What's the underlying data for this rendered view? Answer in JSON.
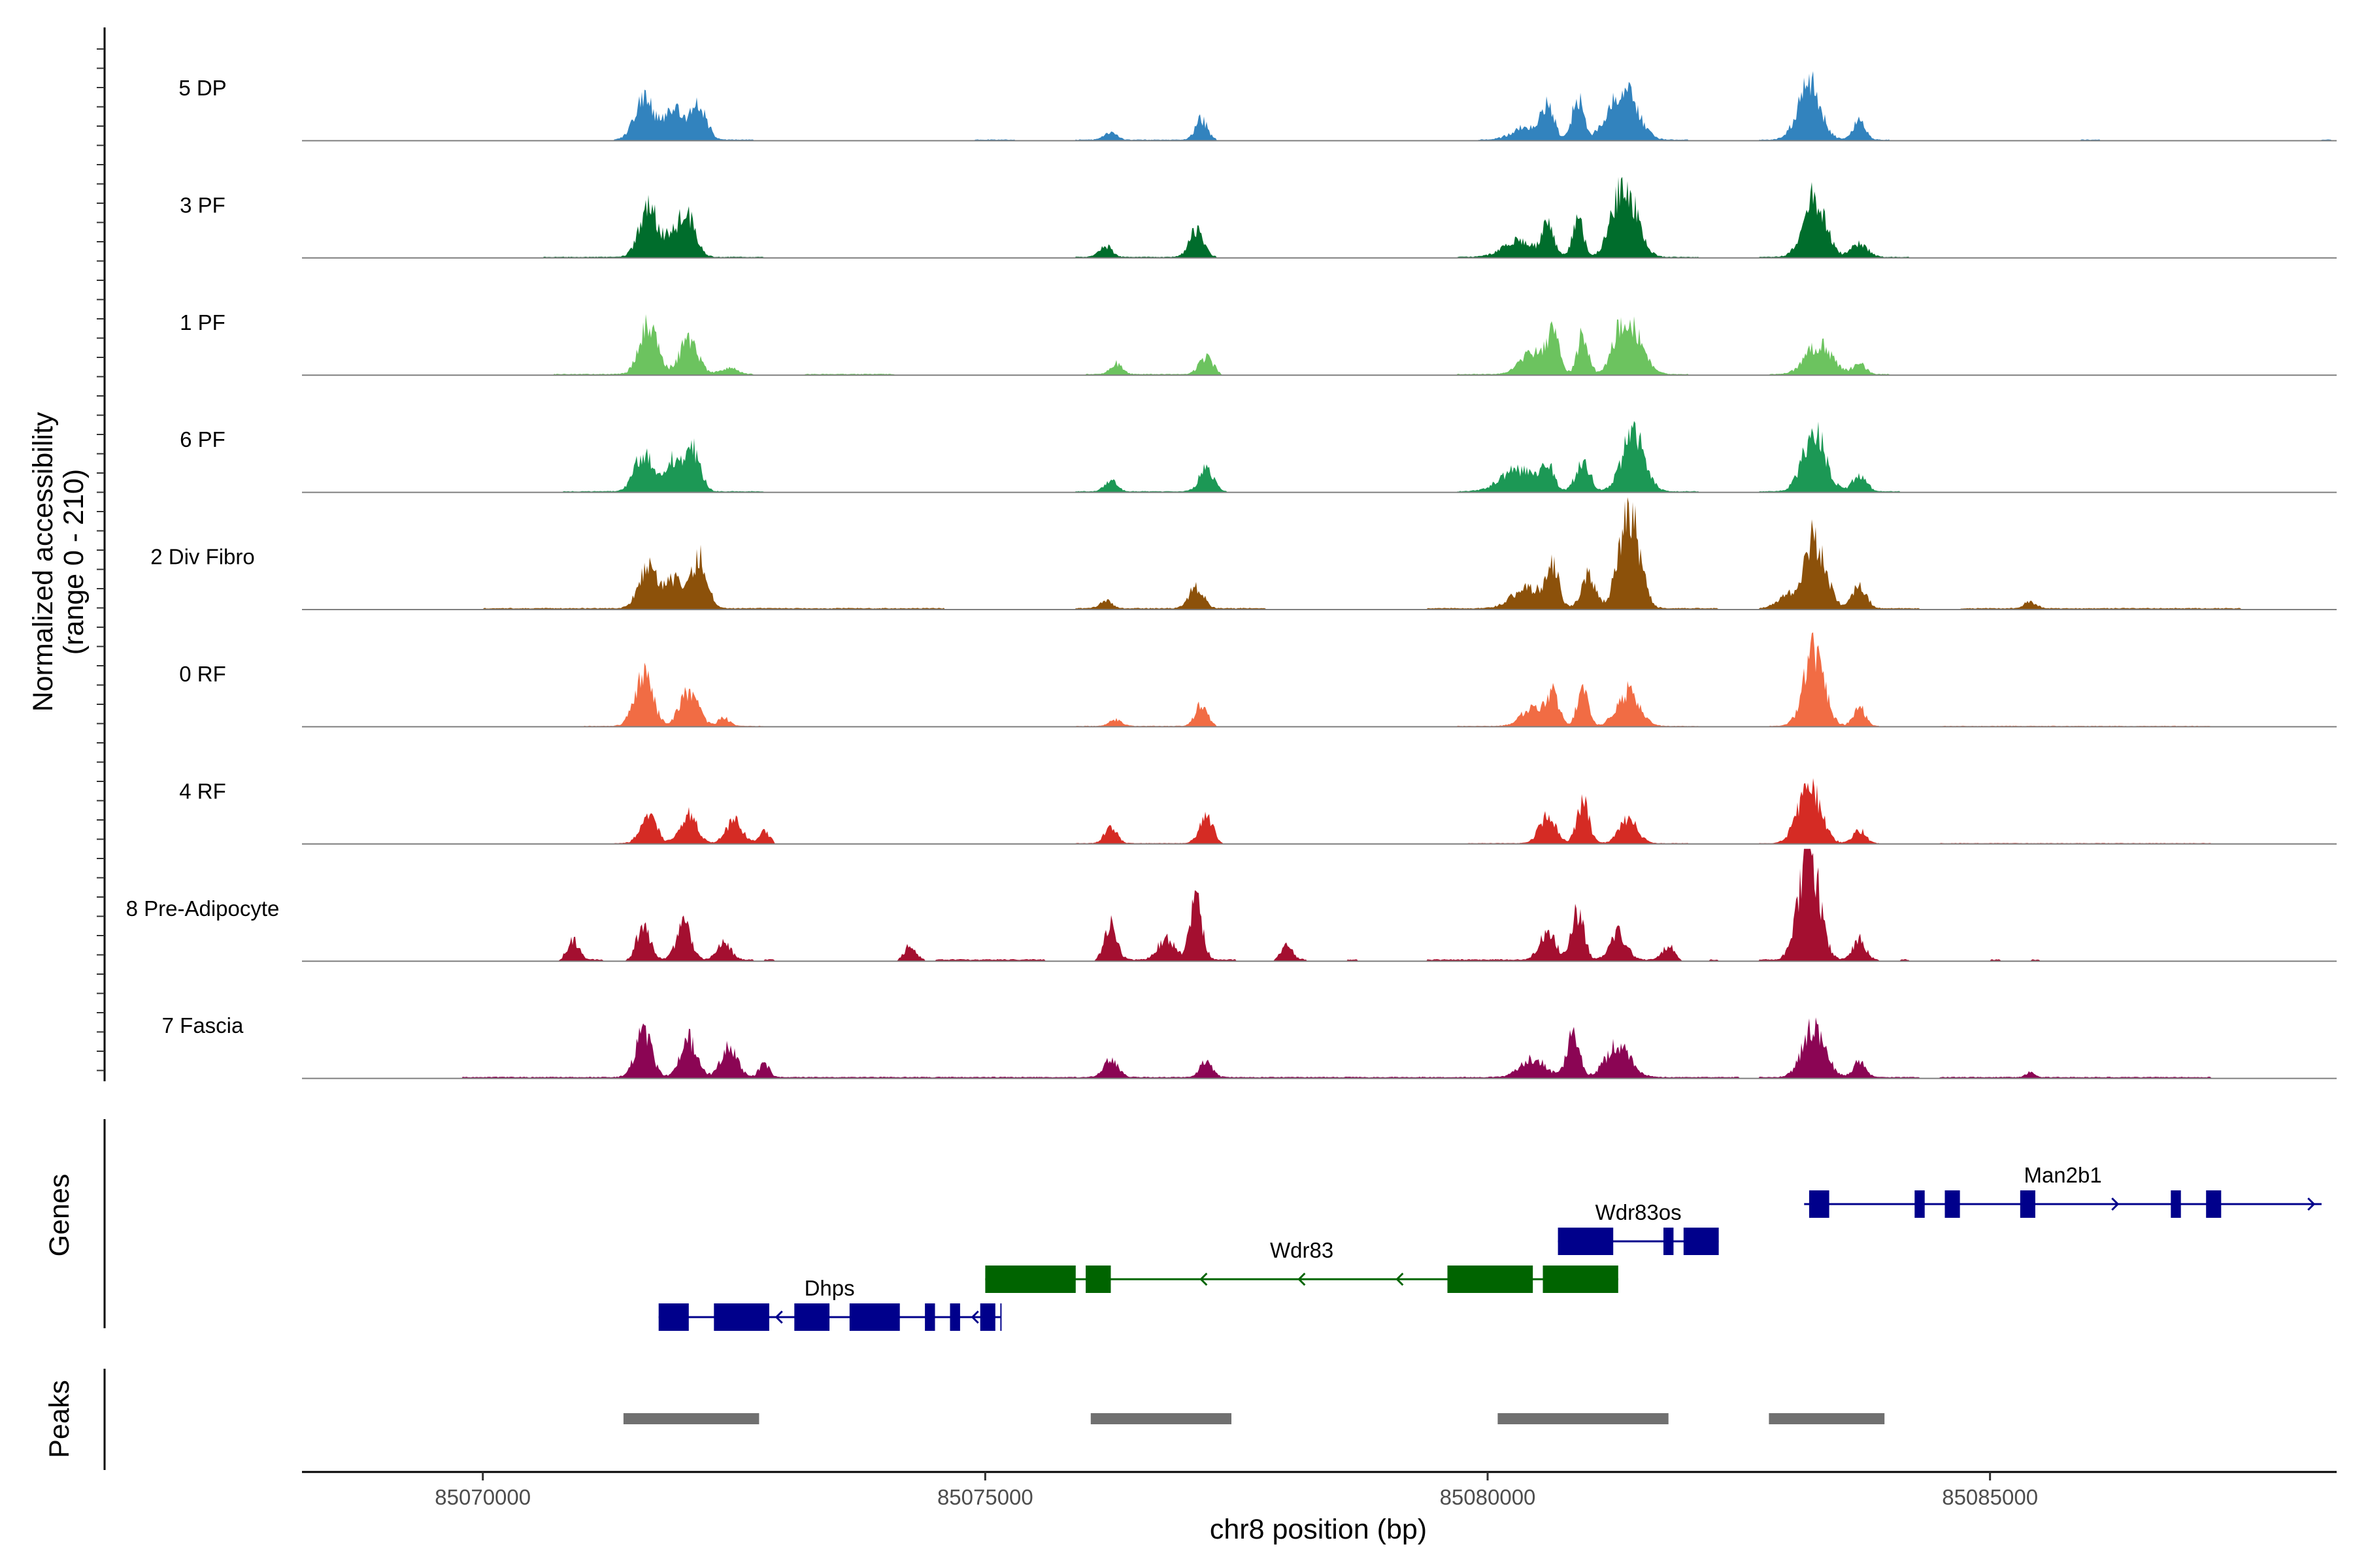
{
  "chart_data": {
    "type": "area",
    "chromosome": "chr8",
    "xlabel": "chr8 position (bp)",
    "xlim": [
      85068200,
      85088450
    ],
    "x_ticks": [
      85070000,
      85075000,
      85080000,
      85085000
    ],
    "x_tick_labels": [
      "85070000",
      "85075000",
      "85080000",
      "85085000"
    ],
    "ylabel_line1": "Normalized accessibility",
    "ylabel_line2": "(range 0 - 210)",
    "ylim": [
      0,
      210
    ],
    "panel_titles": {
      "genes": "Genes",
      "peaks": "Peaks"
    },
    "tracks": [
      {
        "name": "5 DP",
        "color": "#3283be",
        "noise": 2,
        "support": [
          [
            85071300,
            85072700
          ],
          [
            85074900,
            85075300
          ],
          [
            85075900,
            85077300
          ],
          [
            85079900,
            85082000
          ],
          [
            85082700,
            85084000
          ],
          [
            85085900,
            85086100
          ],
          [
            85088300,
            85088400
          ]
        ],
        "peaks": [
          [
            85071600,
            80,
            90
          ],
          [
            85071900,
            55,
            100
          ],
          [
            85072150,
            60,
            80
          ],
          [
            85076250,
            15,
            60
          ],
          [
            85077150,
            38,
            60
          ],
          [
            85080400,
            25,
            140
          ],
          [
            85080600,
            60,
            60
          ],
          [
            85080900,
            80,
            55
          ],
          [
            85081250,
            45,
            110
          ],
          [
            85081400,
            70,
            120
          ],
          [
            85083200,
            105,
            110
          ],
          [
            85083700,
            35,
            60
          ]
        ]
      },
      {
        "name": "3 PF",
        "color": "#006d2c",
        "noise": 2,
        "support": [
          [
            85070600,
            85072800
          ],
          [
            85075900,
            85077300
          ],
          [
            85079700,
            85082100
          ],
          [
            85082700,
            85084200
          ]
        ],
        "peaks": [
          [
            85071650,
            95,
            90
          ],
          [
            85071900,
            45,
            80
          ],
          [
            85072050,
            65,
            80
          ],
          [
            85076200,
            20,
            60
          ],
          [
            85077100,
            48,
            70
          ],
          [
            85080300,
            30,
            150
          ],
          [
            85080600,
            55,
            60
          ],
          [
            85080900,
            72,
            55
          ],
          [
            85081300,
            60,
            100
          ],
          [
            85081400,
            90,
            110
          ],
          [
            85083250,
            110,
            110
          ],
          [
            85083700,
            25,
            80
          ]
        ]
      },
      {
        "name": "1 PF",
        "color": "#6cc35f",
        "noise": 2,
        "support": [
          [
            85070700,
            85072700
          ],
          [
            85073200,
            85074100
          ],
          [
            85076000,
            85077300
          ],
          [
            85079700,
            85082000
          ],
          [
            85082800,
            85084000
          ]
        ],
        "peaks": [
          [
            85071650,
            90,
            90
          ],
          [
            85072050,
            65,
            90
          ],
          [
            85072450,
            12,
            80
          ],
          [
            85076300,
            20,
            60
          ],
          [
            85077200,
            30,
            70
          ],
          [
            85080450,
            40,
            120
          ],
          [
            85080650,
            70,
            60
          ],
          [
            85080950,
            75,
            55
          ],
          [
            85081300,
            55,
            80
          ],
          [
            85081450,
            80,
            110
          ],
          [
            85083300,
            55,
            130
          ],
          [
            85083700,
            20,
            60
          ]
        ]
      },
      {
        "name": "6 PF",
        "color": "#1c9855",
        "noise": 2,
        "support": [
          [
            85070800,
            85072800
          ],
          [
            85075900,
            85077400
          ],
          [
            85079700,
            85082100
          ],
          [
            85082700,
            85084100
          ]
        ],
        "peaks": [
          [
            85071600,
            70,
            90
          ],
          [
            85071900,
            60,
            80
          ],
          [
            85072100,
            75,
            70
          ],
          [
            85076250,
            20,
            60
          ],
          [
            85077200,
            42,
            70
          ],
          [
            85080300,
            40,
            170
          ],
          [
            85080600,
            45,
            60
          ],
          [
            85080950,
            55,
            70
          ],
          [
            85081450,
            110,
            110
          ],
          [
            85083250,
            115,
            110
          ],
          [
            85083700,
            30,
            70
          ]
        ]
      },
      {
        "name": "2 Div Fibro",
        "color": "#8c510a",
        "noise": 2.5,
        "support": [
          [
            85070000,
            85074600
          ],
          [
            85075900,
            85077800
          ],
          [
            85079400,
            85082300
          ],
          [
            85082700,
            85084300
          ],
          [
            85084700,
            85087500
          ]
        ],
        "peaks": [
          [
            85071650,
            85,
            90
          ],
          [
            85071900,
            55,
            80
          ],
          [
            85072150,
            95,
            80
          ],
          [
            85076200,
            15,
            60
          ],
          [
            85077100,
            40,
            70
          ],
          [
            85080400,
            40,
            150
          ],
          [
            85080650,
            70,
            60
          ],
          [
            85081000,
            60,
            70
          ],
          [
            85081350,
            80,
            90
          ],
          [
            85081450,
            120,
            90
          ],
          [
            85082950,
            20,
            90
          ],
          [
            85083250,
            130,
            110
          ],
          [
            85083700,
            40,
            70
          ],
          [
            85085400,
            12,
            60
          ]
        ]
      },
      {
        "name": "0 RF",
        "color": "#f16c44",
        "noise": 1.5,
        "support": [
          [
            85071000,
            85072800
          ],
          [
            85075900,
            85077300
          ],
          [
            85079700,
            85082100
          ],
          [
            85082800,
            85083900
          ],
          [
            85084500,
            85087200
          ]
        ],
        "peaks": [
          [
            85071600,
            95,
            90
          ],
          [
            85072050,
            65,
            90
          ],
          [
            85072400,
            15,
            60
          ],
          [
            85076300,
            12,
            60
          ],
          [
            85077150,
            42,
            60
          ],
          [
            85080450,
            35,
            110
          ],
          [
            85080650,
            60,
            60
          ],
          [
            85080950,
            75,
            55
          ],
          [
            85081400,
            65,
            110
          ],
          [
            85083250,
            140,
            100
          ],
          [
            85083700,
            35,
            60
          ]
        ]
      },
      {
        "name": "4 RF",
        "color": "#d52b24",
        "noise": 1.5,
        "support": [
          [
            85071300,
            85072900
          ],
          [
            85075900,
            85077300
          ],
          [
            85079800,
            85082000
          ],
          [
            85082700,
            85083900
          ],
          [
            85084500,
            85087200
          ]
        ],
        "peaks": [
          [
            85071650,
            50,
            80
          ],
          [
            85072050,
            55,
            80
          ],
          [
            85072500,
            42,
            80
          ],
          [
            85072800,
            25,
            50
          ],
          [
            85076250,
            30,
            60
          ],
          [
            85077200,
            48,
            70
          ],
          [
            85080600,
            55,
            80
          ],
          [
            85080950,
            75,
            60
          ],
          [
            85081400,
            45,
            90
          ],
          [
            85083200,
            110,
            110
          ],
          [
            85083700,
            25,
            60
          ]
        ]
      },
      {
        "name": "8 Pre-Adipocyte",
        "color": "#a40f30",
        "noise": 3,
        "support": [
          [
            85070800,
            85071200
          ],
          [
            85071500,
            85072700
          ],
          [
            85072800,
            85072900
          ],
          [
            85074200,
            85074400
          ],
          [
            85074500,
            85075600
          ],
          [
            85076100,
            85077500
          ],
          [
            85077900,
            85078200
          ],
          [
            85078600,
            85078700
          ],
          [
            85079400,
            85081900
          ],
          [
            85082200,
            85082300
          ],
          [
            85082700,
            85083900
          ],
          [
            85084100,
            85084200
          ],
          [
            85085000,
            85085100
          ],
          [
            85085400,
            85085500
          ]
        ],
        "peaks": [
          [
            85070900,
            35,
            60
          ],
          [
            85071600,
            60,
            70
          ],
          [
            85072000,
            65,
            70
          ],
          [
            85072400,
            30,
            70
          ],
          [
            85074250,
            25,
            60
          ],
          [
            85076250,
            70,
            60
          ],
          [
            85076800,
            40,
            80
          ],
          [
            85077100,
            110,
            60
          ],
          [
            85078000,
            25,
            60
          ],
          [
            85080600,
            50,
            80
          ],
          [
            85080900,
            90,
            60
          ],
          [
            85081300,
            50,
            80
          ],
          [
            85081800,
            25,
            60
          ],
          [
            85083200,
            205,
            100
          ],
          [
            85083700,
            40,
            60
          ]
        ]
      },
      {
        "name": "7 Fascia",
        "color": "#8b0554",
        "noise": 2.5,
        "support": [
          [
            85069800,
            85082500
          ],
          [
            85082700,
            85084300
          ],
          [
            85084500,
            85087200
          ]
        ],
        "peaks": [
          [
            85071600,
            85,
            80
          ],
          [
            85072050,
            70,
            80
          ],
          [
            85072450,
            60,
            80
          ],
          [
            85072800,
            25,
            50
          ],
          [
            85076250,
            35,
            70
          ],
          [
            85077200,
            30,
            60
          ],
          [
            85080450,
            35,
            120
          ],
          [
            85080850,
            85,
            60
          ],
          [
            85081300,
            60,
            120
          ],
          [
            85083250,
            95,
            110
          ],
          [
            85083700,
            30,
            60
          ],
          [
            85085400,
            10,
            40
          ]
        ]
      }
    ],
    "genes": [
      {
        "name": "Dhps",
        "strand": "-",
        "start": 85071750,
        "end": 85075150,
        "color": "#00008b",
        "row": 3,
        "exons": [
          [
            85071750,
            85072050
          ],
          [
            85072300,
            85072850
          ],
          [
            85073100,
            85073450
          ],
          [
            85073650,
            85074150
          ],
          [
            85074400,
            85074500
          ],
          [
            85074650,
            85074750
          ],
          [
            85074950,
            85075100
          ],
          [
            85075150,
            85075150
          ]
        ]
      },
      {
        "name": "Wdr83",
        "strand": "-",
        "start": 85075000,
        "end": 85081300,
        "color": "#006400",
        "row": 2,
        "exons": [
          [
            85075000,
            85075900
          ],
          [
            85076000,
            85076250
          ],
          [
            85079600,
            85080450
          ],
          [
            85080550,
            85081300
          ]
        ]
      },
      {
        "name": "Wdr83os",
        "strand": "+",
        "start": 85080700,
        "end": 85082300,
        "color": "#00008b",
        "row": 1,
        "exons": [
          [
            85080700,
            85081250
          ],
          [
            85081750,
            85081850
          ],
          [
            85081950,
            85082300
          ]
        ]
      },
      {
        "name": "Man2b1",
        "strand": "+",
        "start": 85083150,
        "end": 85088300,
        "color": "#00008b",
        "row": 0,
        "exons": [
          [
            85083200,
            85083400
          ],
          [
            85084250,
            85084350
          ],
          [
            85084550,
            85084700
          ],
          [
            85085300,
            85085450
          ],
          [
            85086800,
            85086900
          ],
          [
            85087150,
            85087300
          ]
        ]
      }
    ],
    "peaks": [
      {
        "start": 85071400,
        "end": 85072750,
        "color": "#707070"
      },
      {
        "start": 85076050,
        "end": 85077450,
        "color": "#707070"
      },
      {
        "start": 85080100,
        "end": 85081800,
        "color": "#707070"
      },
      {
        "start": 85082800,
        "end": 85083950,
        "color": "#707070"
      }
    ]
  }
}
